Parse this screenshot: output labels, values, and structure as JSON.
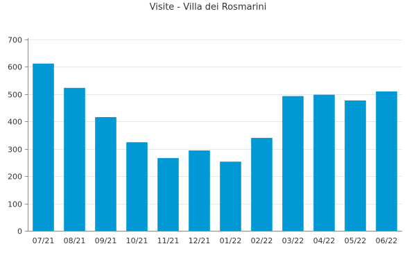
{
  "chart_data": {
    "type": "bar",
    "title": "Visite - Villa dei Rosmarini",
    "categories": [
      "07/21",
      "08/21",
      "09/21",
      "10/21",
      "11/21",
      "12/21",
      "01/22",
      "02/22",
      "03/22",
      "04/22",
      "05/22",
      "06/22"
    ],
    "values": [
      612,
      523,
      416,
      324,
      266,
      294,
      253,
      340,
      493,
      498,
      477,
      510
    ],
    "ylim": [
      0,
      700
    ],
    "yticks": [
      "0",
      "100",
      "200",
      "300",
      "400",
      "500",
      "600",
      "700"
    ],
    "grid": true,
    "bar_color": "#0098d5",
    "grid_color": "#e6e6e6",
    "axis_color": "#888888",
    "text_color": "#333333"
  }
}
